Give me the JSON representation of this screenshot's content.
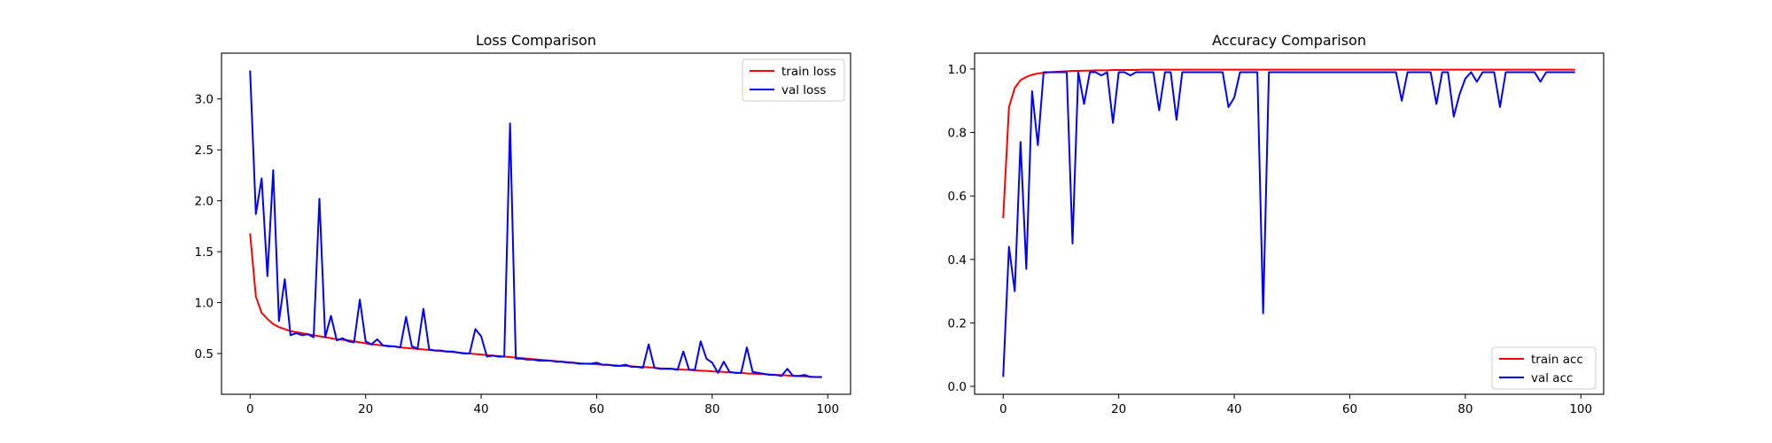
{
  "chart_data": [
    {
      "type": "line",
      "title": "Loss Comparison",
      "xlabel": "",
      "ylabel": "",
      "xlim": [
        -4.95,
        103.95
      ],
      "ylim": [
        0.1,
        3.45
      ],
      "xticks": [
        0,
        20,
        40,
        60,
        80,
        100
      ],
      "yticks": [
        0.5,
        1.0,
        1.5,
        2.0,
        2.5,
        3.0
      ],
      "grid": false,
      "legend_position": "top-right",
      "x": [
        0,
        1,
        2,
        3,
        4,
        5,
        6,
        7,
        8,
        9,
        10,
        11,
        12,
        13,
        14,
        15,
        16,
        17,
        18,
        19,
        20,
        21,
        22,
        23,
        24,
        25,
        26,
        27,
        28,
        29,
        30,
        31,
        32,
        33,
        34,
        35,
        36,
        37,
        38,
        39,
        40,
        41,
        42,
        43,
        44,
        45,
        46,
        47,
        48,
        49,
        50,
        51,
        52,
        53,
        54,
        55,
        56,
        57,
        58,
        59,
        60,
        61,
        62,
        63,
        64,
        65,
        66,
        67,
        68,
        69,
        70,
        71,
        72,
        73,
        74,
        75,
        76,
        77,
        78,
        79,
        80,
        81,
        82,
        83,
        84,
        85,
        86,
        87,
        88,
        89,
        90,
        91,
        92,
        93,
        94,
        95,
        96,
        97,
        98,
        99
      ],
      "series": [
        {
          "name": "train loss",
          "color": "#ff0000",
          "values": [
            1.68,
            1.06,
            0.9,
            0.84,
            0.79,
            0.76,
            0.74,
            0.72,
            0.71,
            0.7,
            0.69,
            0.68,
            0.67,
            0.66,
            0.65,
            0.64,
            0.635,
            0.63,
            0.62,
            0.61,
            0.6,
            0.59,
            0.585,
            0.58,
            0.575,
            0.57,
            0.56,
            0.555,
            0.55,
            0.545,
            0.54,
            0.535,
            0.53,
            0.525,
            0.52,
            0.515,
            0.51,
            0.505,
            0.5,
            0.495,
            0.49,
            0.485,
            0.48,
            0.475,
            0.47,
            0.465,
            0.46,
            0.455,
            0.45,
            0.445,
            0.44,
            0.435,
            0.43,
            0.425,
            0.42,
            0.415,
            0.41,
            0.405,
            0.4,
            0.398,
            0.395,
            0.39,
            0.388,
            0.385,
            0.38,
            0.378,
            0.375,
            0.37,
            0.368,
            0.365,
            0.36,
            0.355,
            0.352,
            0.35,
            0.345,
            0.342,
            0.34,
            0.335,
            0.332,
            0.33,
            0.325,
            0.322,
            0.32,
            0.315,
            0.312,
            0.31,
            0.305,
            0.302,
            0.3,
            0.298,
            0.295,
            0.29,
            0.288,
            0.285,
            0.28,
            0.278,
            0.275,
            0.272,
            0.27,
            0.268
          ]
        },
        {
          "name": "val loss",
          "color": "#0000ff",
          "values": [
            3.28,
            1.87,
            2.22,
            1.26,
            2.3,
            0.82,
            1.23,
            0.68,
            0.7,
            0.68,
            0.69,
            0.66,
            2.02,
            0.66,
            0.87,
            0.63,
            0.65,
            0.62,
            0.61,
            1.03,
            0.62,
            0.59,
            0.64,
            0.58,
            0.57,
            0.57,
            0.56,
            0.86,
            0.57,
            0.55,
            0.94,
            0.54,
            0.53,
            0.53,
            0.52,
            0.52,
            0.51,
            0.5,
            0.5,
            0.74,
            0.67,
            0.47,
            0.48,
            0.47,
            0.47,
            2.76,
            0.45,
            0.45,
            0.44,
            0.44,
            0.43,
            0.43,
            0.43,
            0.42,
            0.42,
            0.41,
            0.41,
            0.4,
            0.4,
            0.4,
            0.41,
            0.39,
            0.39,
            0.38,
            0.38,
            0.39,
            0.37,
            0.37,
            0.36,
            0.59,
            0.36,
            0.35,
            0.35,
            0.35,
            0.34,
            0.52,
            0.34,
            0.34,
            0.62,
            0.45,
            0.41,
            0.31,
            0.42,
            0.32,
            0.31,
            0.31,
            0.56,
            0.32,
            0.31,
            0.3,
            0.29,
            0.29,
            0.28,
            0.35,
            0.28,
            0.28,
            0.29,
            0.27,
            0.27,
            0.27
          ]
        }
      ]
    },
    {
      "type": "line",
      "title": "Accuracy Comparison",
      "xlabel": "",
      "ylabel": "",
      "xlim": [
        -4.95,
        103.95
      ],
      "ylim": [
        -0.025,
        1.05
      ],
      "xticks": [
        0,
        20,
        40,
        60,
        80,
        100
      ],
      "yticks": [
        0.0,
        0.2,
        0.4,
        0.6,
        0.8,
        1.0
      ],
      "grid": false,
      "legend_position": "bottom-right",
      "x": [
        0,
        1,
        2,
        3,
        4,
        5,
        6,
        7,
        8,
        9,
        10,
        11,
        12,
        13,
        14,
        15,
        16,
        17,
        18,
        19,
        20,
        21,
        22,
        23,
        24,
        25,
        26,
        27,
        28,
        29,
        30,
        31,
        32,
        33,
        34,
        35,
        36,
        37,
        38,
        39,
        40,
        41,
        42,
        43,
        44,
        45,
        46,
        47,
        48,
        49,
        50,
        51,
        52,
        53,
        54,
        55,
        56,
        57,
        58,
        59,
        60,
        61,
        62,
        63,
        64,
        65,
        66,
        67,
        68,
        69,
        70,
        71,
        72,
        73,
        74,
        75,
        76,
        77,
        78,
        79,
        80,
        81,
        82,
        83,
        84,
        85,
        86,
        87,
        88,
        89,
        90,
        91,
        92,
        93,
        94,
        95,
        96,
        97,
        98,
        99
      ],
      "series": [
        {
          "name": "train acc",
          "color": "#ff0000",
          "values": [
            0.53,
            0.88,
            0.94,
            0.965,
            0.975,
            0.982,
            0.986,
            0.988,
            0.99,
            0.991,
            0.992,
            0.993,
            0.994,
            0.994,
            0.995,
            0.995,
            0.996,
            0.996,
            0.996,
            0.997,
            0.997,
            0.997,
            0.997,
            0.997,
            0.998,
            0.998,
            0.998,
            0.998,
            0.998,
            0.998,
            0.998,
            0.998,
            0.998,
            0.998,
            0.998,
            0.998,
            0.998,
            0.998,
            0.998,
            0.998,
            0.998,
            0.998,
            0.998,
            0.998,
            0.998,
            0.998,
            0.998,
            0.998,
            0.998,
            0.998,
            0.998,
            0.998,
            0.998,
            0.998,
            0.998,
            0.998,
            0.998,
            0.998,
            0.998,
            0.998,
            0.998,
            0.998,
            0.998,
            0.998,
            0.998,
            0.998,
            0.998,
            0.998,
            0.998,
            0.998,
            0.998,
            0.998,
            0.998,
            0.998,
            0.998,
            0.998,
            0.998,
            0.998,
            0.998,
            0.998,
            0.998,
            0.998,
            0.998,
            0.998,
            0.998,
            0.998,
            0.998,
            0.998,
            0.998,
            0.998,
            0.998,
            0.998,
            0.998,
            0.998,
            0.998,
            0.998,
            0.998,
            0.998,
            0.998,
            0.998
          ]
        },
        {
          "name": "val acc",
          "color": "#0000ff",
          "values": [
            0.03,
            0.44,
            0.3,
            0.77,
            0.37,
            0.93,
            0.76,
            0.99,
            0.99,
            0.99,
            0.99,
            0.99,
            0.45,
            0.99,
            0.89,
            0.99,
            0.99,
            0.98,
            0.99,
            0.83,
            0.99,
            0.99,
            0.98,
            0.99,
            0.99,
            0.99,
            0.99,
            0.87,
            0.99,
            0.99,
            0.84,
            0.99,
            0.99,
            0.99,
            0.99,
            0.99,
            0.99,
            0.99,
            0.99,
            0.88,
            0.91,
            0.99,
            0.99,
            0.99,
            0.99,
            0.23,
            0.99,
            0.99,
            0.99,
            0.99,
            0.99,
            0.99,
            0.99,
            0.99,
            0.99,
            0.99,
            0.99,
            0.99,
            0.99,
            0.99,
            0.99,
            0.99,
            0.99,
            0.99,
            0.99,
            0.99,
            0.99,
            0.99,
            0.99,
            0.9,
            0.99,
            0.99,
            0.99,
            0.99,
            0.99,
            0.89,
            0.99,
            0.99,
            0.85,
            0.92,
            0.97,
            0.99,
            0.96,
            0.99,
            0.99,
            0.99,
            0.88,
            0.99,
            0.99,
            0.99,
            0.99,
            0.99,
            0.99,
            0.96,
            0.99,
            0.99,
            0.99,
            0.99,
            0.99,
            0.99
          ]
        }
      ]
    }
  ]
}
